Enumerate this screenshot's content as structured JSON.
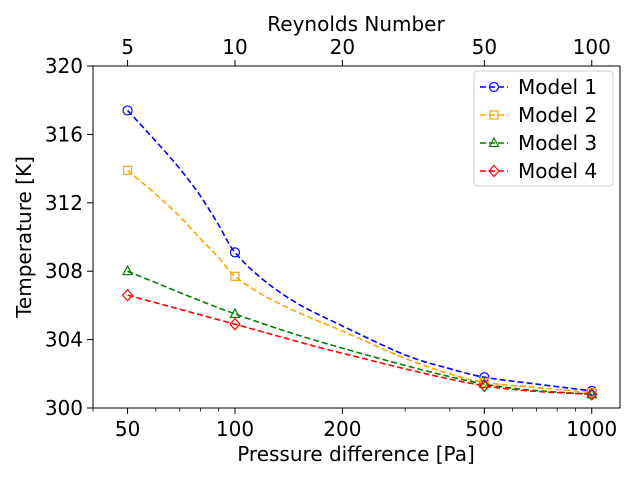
{
  "chart_data": {
    "type": "line",
    "title": "",
    "xlabel": "Pressure difference [Pa]",
    "ylabel": "Temperature [K]",
    "top_xlabel": "Reynolds Number",
    "xscale": "log",
    "xlim": [
      40,
      1200
    ],
    "ylim": [
      300,
      320
    ],
    "x_ticks": [
      50,
      100,
      200,
      500,
      1000
    ],
    "x_tick_labels": [
      "50",
      "100",
      "200",
      "500",
      "1000"
    ],
    "y_ticks": [
      300,
      304,
      308,
      312,
      316,
      320
    ],
    "y_tick_labels": [
      "300",
      "304",
      "308",
      "312",
      "316",
      "320"
    ],
    "top_ticks": [
      {
        "pressure": 50,
        "label": "5"
      },
      {
        "pressure": 100,
        "label": "10"
      },
      {
        "pressure": 200,
        "label": "20"
      },
      {
        "pressure": 500,
        "label": "50"
      },
      {
        "pressure": 1000,
        "label": "100"
      }
    ],
    "grid": false,
    "legend_position": "top-right",
    "series": [
      {
        "name": "Model 1",
        "color": "#0000ff",
        "marker": "circle",
        "points": [
          {
            "x": 50,
            "y": 317.4
          },
          {
            "x": 100,
            "y": 309.1
          },
          {
            "x": 500,
            "y": 301.8
          },
          {
            "x": 1000,
            "y": 301.0
          }
        ],
        "curve": [
          [
            50,
            317.4
          ],
          [
            60,
            315.6
          ],
          [
            70,
            314.0
          ],
          [
            80,
            312.4
          ],
          [
            90,
            310.7
          ],
          [
            100,
            309.1
          ],
          [
            120,
            307.5
          ],
          [
            150,
            306.1
          ],
          [
            200,
            304.8
          ],
          [
            300,
            303.1
          ],
          [
            400,
            302.3
          ],
          [
            500,
            301.8
          ],
          [
            700,
            301.4
          ],
          [
            1000,
            301.0
          ]
        ]
      },
      {
        "name": "Model 2",
        "color": "#ffa500",
        "marker": "square",
        "points": [
          {
            "x": 50,
            "y": 313.9
          },
          {
            "x": 100,
            "y": 307.7
          },
          {
            "x": 500,
            "y": 301.5
          },
          {
            "x": 1000,
            "y": 300.9
          }
        ],
        "curve": [
          [
            50,
            313.9
          ],
          [
            60,
            312.5
          ],
          [
            70,
            311.2
          ],
          [
            80,
            309.9
          ],
          [
            90,
            308.8
          ],
          [
            100,
            307.7
          ],
          [
            120,
            306.6
          ],
          [
            150,
            305.6
          ],
          [
            200,
            304.5
          ],
          [
            300,
            302.9
          ],
          [
            400,
            302.0
          ],
          [
            500,
            301.5
          ],
          [
            700,
            301.2
          ],
          [
            1000,
            300.9
          ]
        ]
      },
      {
        "name": "Model 3",
        "color": "#008000",
        "marker": "triangle",
        "points": [
          {
            "x": 50,
            "y": 308.0
          },
          {
            "x": 100,
            "y": 305.5
          },
          {
            "x": 500,
            "y": 301.4
          },
          {
            "x": 1000,
            "y": 300.8
          }
        ],
        "curve": [
          [
            50,
            308.0
          ],
          [
            100,
            305.5
          ],
          [
            200,
            303.5
          ],
          [
            500,
            301.4
          ],
          [
            1000,
            300.8
          ]
        ]
      },
      {
        "name": "Model 4",
        "color": "#ff0000",
        "marker": "diamond",
        "points": [
          {
            "x": 50,
            "y": 306.6
          },
          {
            "x": 100,
            "y": 304.9
          },
          {
            "x": 500,
            "y": 301.3
          },
          {
            "x": 1000,
            "y": 300.8
          }
        ],
        "curve": [
          [
            50,
            306.6
          ],
          [
            100,
            304.9
          ],
          [
            200,
            303.2
          ],
          [
            500,
            301.3
          ],
          [
            1000,
            300.8
          ]
        ]
      }
    ]
  }
}
